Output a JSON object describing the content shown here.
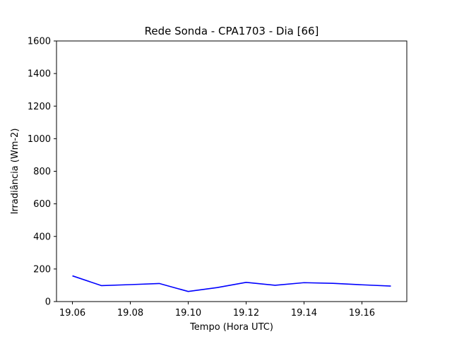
{
  "chart_data": {
    "type": "line",
    "title": "Rede Sonda - CPA1703 - Dia [66]",
    "xlabel": "Tempo (Hora UTC)",
    "ylabel": "Irradiância (Wm-2)",
    "xlim": [
      19.0545,
      19.1755
    ],
    "ylim": [
      0,
      1600
    ],
    "xticks": [
      19.06,
      19.08,
      19.1,
      19.12,
      19.14,
      19.16
    ],
    "xtick_labels": [
      "19.06",
      "19.08",
      "19.10",
      "19.12",
      "19.14",
      "19.16"
    ],
    "yticks": [
      0,
      200,
      400,
      600,
      800,
      1000,
      1200,
      1400,
      1600
    ],
    "ytick_labels": [
      "0",
      "200",
      "400",
      "600",
      "800",
      "1000",
      "1200",
      "1400",
      "1600"
    ],
    "grid": false,
    "series": [
      {
        "color": "#0000ff",
        "x": [
          19.06,
          19.07,
          19.08,
          19.09,
          19.1,
          19.11,
          19.12,
          19.13,
          19.14,
          19.15,
          19.16,
          19.17
        ],
        "y": [
          158,
          98,
          104,
          111,
          62,
          86,
          118,
          100,
          116,
          112,
          103,
          95
        ]
      }
    ]
  }
}
